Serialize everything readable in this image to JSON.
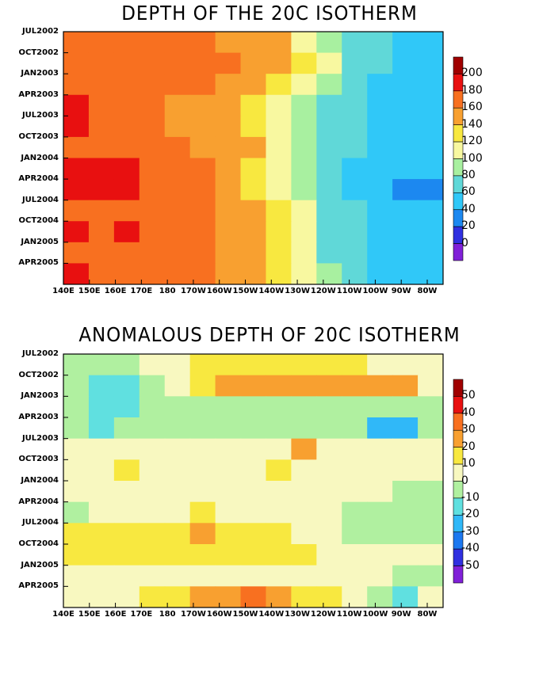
{
  "panels": [
    {
      "title": "DEPTH OF THE 20C ISOTHERM",
      "y_ticks": [
        "JUL2002",
        "OCT2002",
        "JAN2003",
        "APR2003",
        "JUL2003",
        "OCT2003",
        "JAN2004",
        "APR2004",
        "JUL2004",
        "OCT2004",
        "JAN2005",
        "APR2005"
      ],
      "x_ticks": [
        "140E",
        "150E",
        "160E",
        "170E",
        "180",
        "170W",
        "160W",
        "150W",
        "140W",
        "130W",
        "120W",
        "110W",
        "100W",
        "90W",
        "80W"
      ],
      "colorbar_labels": [
        "200",
        "180",
        "160",
        "140",
        "120",
        "100",
        "80",
        "60",
        "40",
        "20",
        "0"
      ],
      "colorbar_colors": [
        "#a00000",
        "#e81010",
        "#f87020",
        "#f8a030",
        "#f8e840",
        "#f8f8a0",
        "#a8f0a0",
        "#60d8d8",
        "#30c8f8",
        "#1c88f0",
        "#3030e0",
        "#8020d8"
      ]
    },
    {
      "title": "ANOMALOUS DEPTH OF 20C ISOTHERM",
      "y_ticks": [
        "JUL2002",
        "OCT2002",
        "JAN2003",
        "APR2003",
        "JUL2003",
        "OCT2003",
        "JAN2004",
        "APR2004",
        "JUL2004",
        "OCT2004",
        "JAN2005",
        "APR2005"
      ],
      "x_ticks": [
        "140E",
        "150E",
        "160E",
        "170E",
        "180",
        "170W",
        "160W",
        "150W",
        "140W",
        "130W",
        "120W",
        "110W",
        "100W",
        "90W",
        "80W"
      ],
      "colorbar_labels": [
        "50",
        "40",
        "30",
        "20",
        "10",
        "0",
        "-10",
        "-20",
        "-30",
        "-40",
        "-50"
      ],
      "colorbar_colors": [
        "#a00000",
        "#e81010",
        "#f87020",
        "#f8a030",
        "#f8e840",
        "#f8f8c0",
        "#b0f0a0",
        "#60e0e0",
        "#30b8f8",
        "#1c78f0",
        "#3030e0",
        "#8020d8"
      ]
    }
  ],
  "chart_data": [
    {
      "type": "heatmap",
      "title": "DEPTH OF THE 20C ISOTHERM",
      "x": [
        "140E",
        "150E",
        "160E",
        "170E",
        "180",
        "170W",
        "160W",
        "150W",
        "140W",
        "130W",
        "120W",
        "110W",
        "100W",
        "90W",
        "80W"
      ],
      "y": [
        "JUL2002",
        "OCT2002",
        "JAN2003",
        "APR2003",
        "JUL2003",
        "OCT2003",
        "JAN2004",
        "APR2004",
        "JUL2004",
        "OCT2004",
        "JAN2005",
        "APR2005"
      ],
      "levels": [
        0,
        20,
        40,
        60,
        80,
        100,
        120,
        140,
        160,
        180,
        200
      ],
      "values": [
        [
          165,
          165,
          165,
          165,
          165,
          160,
          155,
          150,
          140,
          115,
          95,
          75,
          65,
          55,
          55
        ],
        [
          165,
          165,
          160,
          165,
          160,
          160,
          160,
          155,
          150,
          130,
          100,
          75,
          65,
          55,
          55
        ],
        [
          165,
          165,
          165,
          160,
          160,
          160,
          155,
          150,
          135,
          105,
          80,
          65,
          55,
          45,
          45
        ],
        [
          185,
          165,
          165,
          160,
          155,
          150,
          145,
          135,
          115,
          95,
          75,
          60,
          50,
          40,
          45
        ],
        [
          185,
          165,
          165,
          160,
          155,
          155,
          145,
          130,
          115,
          95,
          75,
          60,
          50,
          40,
          45
        ],
        [
          160,
          165,
          165,
          160,
          160,
          155,
          150,
          140,
          115,
          95,
          75,
          60,
          55,
          45,
          45
        ],
        [
          185,
          185,
          185,
          170,
          165,
          160,
          150,
          135,
          115,
          95,
          70,
          55,
          50,
          40,
          40
        ],
        [
          185,
          185,
          185,
          175,
          165,
          160,
          150,
          130,
          115,
          90,
          65,
          55,
          45,
          35,
          35
        ],
        [
          165,
          165,
          165,
          165,
          160,
          160,
          150,
          140,
          125,
          100,
          75,
          60,
          55,
          45,
          45
        ],
        [
          185,
          165,
          185,
          165,
          160,
          160,
          150,
          140,
          125,
          100,
          75,
          60,
          50,
          45,
          45
        ],
        [
          165,
          165,
          165,
          165,
          165,
          160,
          155,
          140,
          125,
          100,
          75,
          60,
          55,
          45,
          40
        ],
        [
          185,
          165,
          165,
          165,
          165,
          160,
          155,
          140,
          125,
          100,
          80,
          60,
          55,
          45,
          40
        ]
      ]
    },
    {
      "type": "heatmap",
      "title": "ANOMALOUS DEPTH OF 20C ISOTHERM",
      "x": [
        "140E",
        "150E",
        "160E",
        "170E",
        "180",
        "170W",
        "160W",
        "150W",
        "140W",
        "130W",
        "120W",
        "110W",
        "100W",
        "90W",
        "80W"
      ],
      "y": [
        "JUL2002",
        "OCT2002",
        "JAN2003",
        "APR2003",
        "JUL2003",
        "OCT2003",
        "JAN2004",
        "APR2004",
        "JUL2004",
        "OCT2004",
        "JAN2005",
        "APR2005"
      ],
      "levels": [
        -50,
        -40,
        -30,
        -20,
        -10,
        0,
        10,
        20,
        30,
        40,
        50
      ],
      "values": [
        [
          -5,
          -5,
          -5,
          5,
          5,
          15,
          15,
          15,
          15,
          15,
          15,
          15,
          5,
          5,
          5
        ],
        [
          -10,
          -15,
          -15,
          -5,
          5,
          15,
          25,
          25,
          25,
          25,
          25,
          25,
          25,
          25,
          5
        ],
        [
          -10,
          -15,
          -15,
          -10,
          -5,
          -5,
          -5,
          -5,
          -5,
          -5,
          -5,
          -5,
          -5,
          -5,
          -5
        ],
        [
          -5,
          -15,
          -5,
          -5,
          -5,
          -5,
          -5,
          -5,
          -5,
          -5,
          -5,
          -5,
          -25,
          -25,
          -5
        ],
        [
          5,
          5,
          5,
          5,
          5,
          5,
          5,
          5,
          5,
          25,
          5,
          5,
          5,
          5,
          5
        ],
        [
          5,
          5,
          15,
          5,
          5,
          5,
          5,
          5,
          15,
          5,
          5,
          5,
          5,
          5,
          5
        ],
        [
          5,
          5,
          5,
          5,
          5,
          5,
          5,
          5,
          5,
          5,
          5,
          5,
          5,
          -5,
          -5
        ],
        [
          -5,
          5,
          5,
          5,
          5,
          15,
          5,
          5,
          5,
          5,
          5,
          -5,
          -5,
          -5,
          -5
        ],
        [
          15,
          15,
          15,
          15,
          15,
          25,
          15,
          15,
          15,
          5,
          5,
          -5,
          -5,
          -5,
          -5
        ],
        [
          15,
          15,
          15,
          15,
          15,
          15,
          15,
          15,
          15,
          15,
          5,
          5,
          5,
          5,
          5
        ],
        [
          5,
          5,
          5,
          5,
          5,
          5,
          5,
          5,
          5,
          5,
          5,
          5,
          5,
          -5,
          -5
        ],
        [
          5,
          5,
          5,
          15,
          15,
          25,
          25,
          35,
          25,
          15,
          15,
          5,
          -5,
          -15,
          5
        ]
      ]
    }
  ]
}
